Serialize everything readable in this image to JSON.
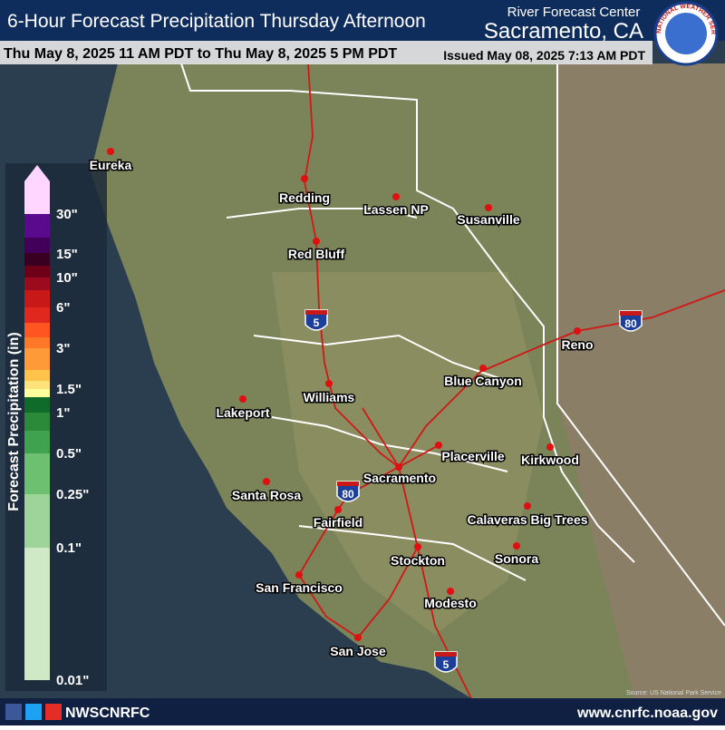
{
  "header": {
    "title": "6-Hour Forecast Precipitation Thursday Afternoon",
    "center_label": "River Forecast Center",
    "center_name": "Sacramento, CA",
    "valid_period": "Thu May 8, 2025 11 AM PDT to Thu May 8, 2025 5 PM PDT",
    "issued": "Issued May 08, 2025 7:13 AM PDT"
  },
  "logo": {
    "text": "NATIONAL WEATHER SERVICE"
  },
  "legend": {
    "title": "Forecast Precipitation (in)",
    "bins": [
      "#ffd6ff",
      "#5a0a8c",
      "#43005a",
      "#3a0022",
      "#6e0018",
      "#9c0a1e",
      "#c81818",
      "#e0281e",
      "#ff5520",
      "#ff7828",
      "#ff9a38",
      "#ffc24a",
      "#ffe27a",
      "#ffff9e",
      "#0f6b2a",
      "#2a8a3a",
      "#3ea24e",
      "#6cc070",
      "#9ed49a",
      "#cfe9c6"
    ],
    "labels": [
      "30\"",
      "15\"",
      "10\"",
      "6\"",
      "3\"",
      "1.5\"",
      "1\"",
      "0.5\"",
      "0.25\"",
      "0.1\"",
      "0.01\""
    ]
  },
  "cities": [
    {
      "name": "Eureka"
    },
    {
      "name": "Redding"
    },
    {
      "name": "Lassen NP"
    },
    {
      "name": "Susanville"
    },
    {
      "name": "Red Bluff"
    },
    {
      "name": "Reno"
    },
    {
      "name": "Blue Canyon"
    },
    {
      "name": "Williams"
    },
    {
      "name": "Lakeport"
    },
    {
      "name": "Placerville"
    },
    {
      "name": "Kirkwood"
    },
    {
      "name": "Sacramento"
    },
    {
      "name": "Santa Rosa"
    },
    {
      "name": "Fairfield"
    },
    {
      "name": "Calaveras Big Trees"
    },
    {
      "name": "Stockton"
    },
    {
      "name": "Sonora"
    },
    {
      "name": "San Francisco"
    },
    {
      "name": "Modesto"
    },
    {
      "name": "San Jose"
    }
  ],
  "highways": [
    {
      "label": "5"
    },
    {
      "label": "80"
    },
    {
      "label": "80"
    },
    {
      "label": "5"
    }
  ],
  "footer": {
    "social": "NWSCNRFC",
    "website": "www.cnrfc.noaa.gov",
    "source": "Source: US National Park Service"
  }
}
